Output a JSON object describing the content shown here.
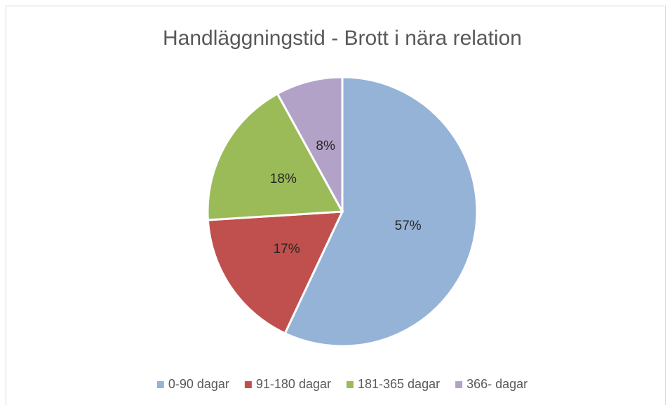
{
  "chart_data": {
    "type": "pie",
    "title": "Handläggningstid - Brott i nära relation",
    "categories": [
      "0-90 dagar",
      "91-180 dagar",
      "181-365 dagar",
      "366- dagar"
    ],
    "values": [
      57,
      17,
      18,
      8
    ],
    "value_labels": [
      "57%",
      "17%",
      "18%",
      "8%"
    ],
    "colors": [
      "#95b3d7",
      "#c0504d",
      "#9bbb59",
      "#b3a2c7"
    ],
    "legend": "bottom"
  }
}
